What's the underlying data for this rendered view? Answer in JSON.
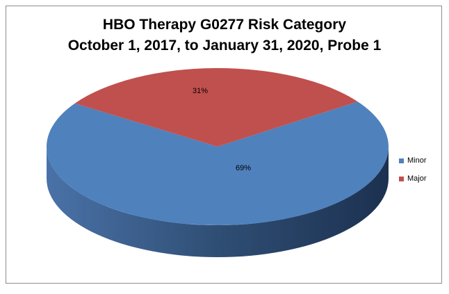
{
  "chart_data": {
    "type": "pie",
    "title": "HBO Therapy G0277 Risk Category",
    "subtitle": "October 1, 2017, to January 31, 2020, Probe 1",
    "categories": [
      "Minor",
      "Major"
    ],
    "values": [
      69,
      31
    ],
    "labels": [
      "69%",
      "31%"
    ],
    "colors": [
      "#4F81BD",
      "#C0504D"
    ],
    "side_colors": [
      "#2F4E74",
      "#7A2E2C"
    ],
    "legend_position": "right",
    "style": "3d"
  }
}
